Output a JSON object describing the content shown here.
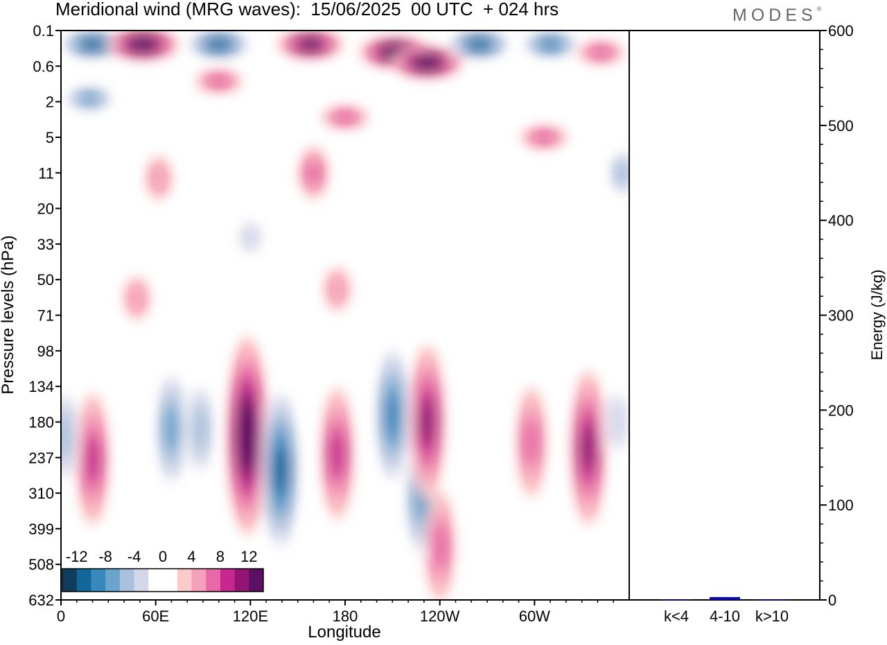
{
  "header": {
    "title": "Meridional wind (MRG waves):  15/06/2025  00 UTC  + 024 hrs",
    "brand": "MODES",
    "brand_mark": "®"
  },
  "chart_data": [
    {
      "type": "heatmap",
      "title": "Meridional wind (MRG waves):  15/06/2025  00 UTC  + 024 hrs",
      "xlabel": "Longitude",
      "ylabel": "Pressure levels (hPa)",
      "x_ticks": [
        "0",
        "60E",
        "120E",
        "180",
        "120W",
        "60W"
      ],
      "x_range_degrees_east": [
        0,
        360
      ],
      "y_ticks": [
        "0.1",
        "0.6",
        "2",
        "5",
        "11",
        "20",
        "33",
        "50",
        "71",
        "98",
        "134",
        "180",
        "237",
        "310",
        "399",
        "508",
        "632"
      ],
      "y_order": "top-to-bottom",
      "colorbar": {
        "placement": "bottom-left inset",
        "labels": [
          "-12",
          "-8",
          "-4",
          "0",
          "4",
          "8",
          "12"
        ],
        "colors": [
          "#0f3d5c",
          "#12679a",
          "#3887bd",
          "#6aa3cb",
          "#a9c1dd",
          "#d4d6e9",
          "#ffffff",
          "#ffffff",
          "#fbcaca",
          "#f6a1bb",
          "#e76aa6",
          "#c8278f",
          "#921575",
          "#5c0f63"
        ]
      },
      "color_min": "#0f3d5c",
      "color_neutral": "#ffffff",
      "color_max": "#5c0f63",
      "features": [
        {
          "lon": 20,
          "level": "0.2",
          "value": -12
        },
        {
          "lon": 52,
          "level": "0.2",
          "value": 14
        },
        {
          "lon": 100,
          "level": "0.2",
          "value": -12
        },
        {
          "lon": 158,
          "level": "0.2",
          "value": 12
        },
        {
          "lon": 212,
          "level": "0.3",
          "value": 14
        },
        {
          "lon": 232,
          "level": "0.5",
          "value": 14
        },
        {
          "lon": 265,
          "level": "0.2",
          "value": -12
        },
        {
          "lon": 310,
          "level": "0.2",
          "value": -10
        },
        {
          "lon": 342,
          "level": "0.3",
          "value": 6
        },
        {
          "lon": 18,
          "level": "1.8",
          "value": -8
        },
        {
          "lon": 100,
          "level": "1",
          "value": 6
        },
        {
          "lon": 180,
          "level": "3",
          "value": 6
        },
        {
          "lon": 160,
          "level": "11",
          "value": 6
        },
        {
          "lon": 62,
          "level": "12",
          "value": 4
        },
        {
          "lon": 306,
          "level": "5",
          "value": 6
        },
        {
          "lon": 356,
          "level": "11",
          "value": -6
        },
        {
          "lon": 48,
          "level": "60",
          "value": 4
        },
        {
          "lon": 175,
          "level": "55",
          "value": 4
        },
        {
          "lon": 120,
          "level": "30",
          "value": -4
        },
        {
          "lon": 2,
          "level": "200",
          "value": -6
        },
        {
          "lon": 20,
          "level": "240",
          "value": 8
        },
        {
          "lon": 70,
          "level": "190",
          "value": -8
        },
        {
          "lon": 88,
          "level": "190",
          "value": -6
        },
        {
          "lon": 118,
          "level": "200",
          "value": 14
        },
        {
          "lon": 139,
          "level": "260",
          "value": -12
        },
        {
          "lon": 175,
          "level": "230",
          "value": 8
        },
        {
          "lon": 210,
          "level": "170",
          "value": -10
        },
        {
          "lon": 228,
          "level": "320",
          "value": -8
        },
        {
          "lon": 232,
          "level": "180",
          "value": 10
        },
        {
          "lon": 240,
          "level": "450",
          "value": 6
        },
        {
          "lon": 298,
          "level": "210",
          "value": 6
        },
        {
          "lon": 334,
          "level": "220",
          "value": 10
        },
        {
          "lon": 352,
          "level": "180",
          "value": -4
        }
      ]
    },
    {
      "type": "bar",
      "categories": [
        "k<4",
        "4-10",
        "k>10"
      ],
      "values": [
        0.5,
        3,
        0.3
      ],
      "y2label": "Energy (J/kg)",
      "ylim": [
        0,
        600
      ],
      "y_ticks": [
        0,
        100,
        200,
        300,
        400,
        500,
        600
      ],
      "bar_color": "#0a0ab4"
    }
  ]
}
